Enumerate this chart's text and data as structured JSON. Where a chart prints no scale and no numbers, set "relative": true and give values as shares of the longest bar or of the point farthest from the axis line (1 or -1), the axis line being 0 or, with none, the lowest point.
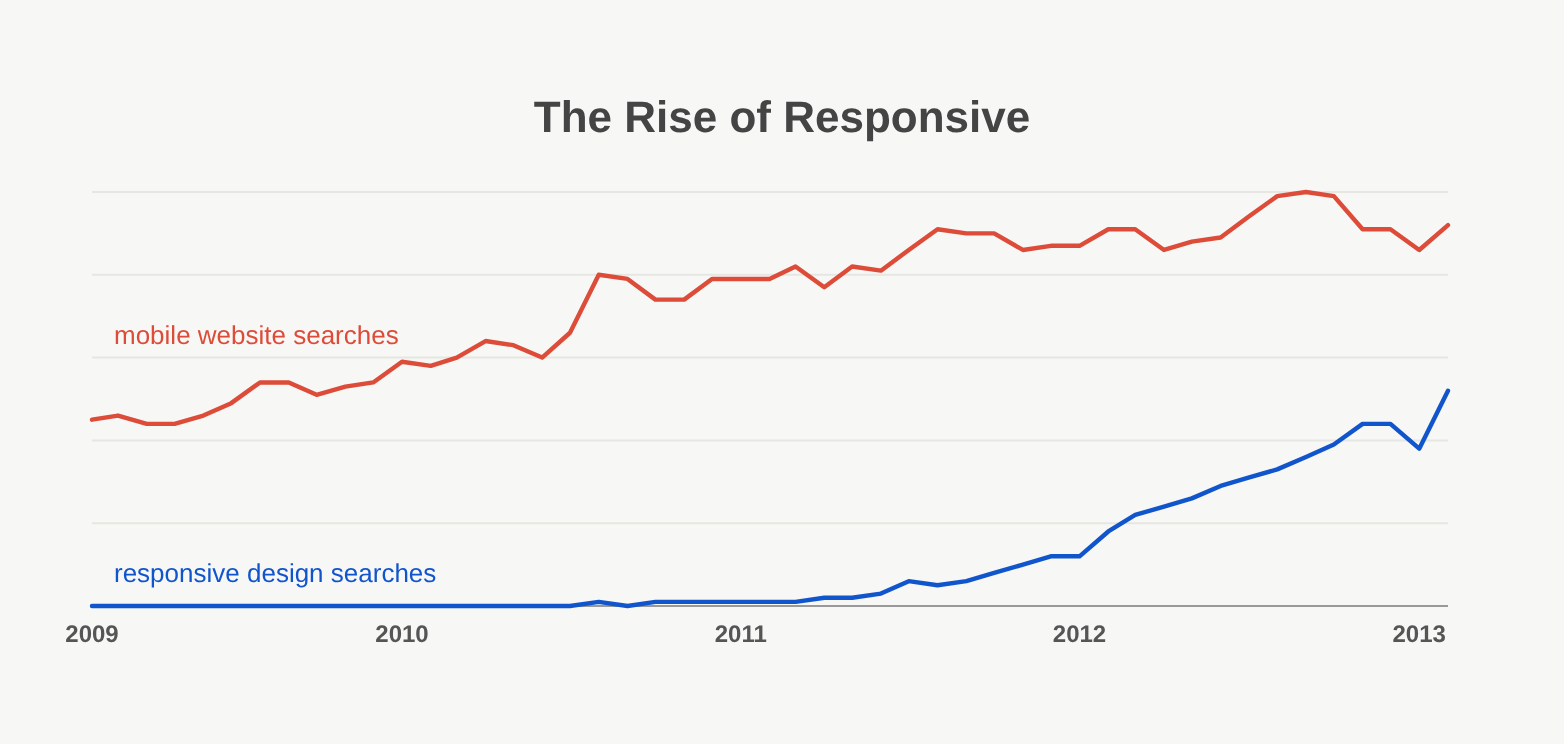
{
  "chart_data": {
    "type": "line",
    "title": "The Rise of Responsive",
    "relative": true,
    "grid": "y",
    "marker": "none",
    "line_style": "solid",
    "x": [
      "2009-02",
      "2009-03",
      "2009-04",
      "2009-05",
      "2009-06",
      "2009-07",
      "2009-08",
      "2009-09",
      "2009-10",
      "2009-11",
      "2009-12",
      "2010-01",
      "2010-02",
      "2010-03",
      "2010-04",
      "2010-05",
      "2010-06",
      "2010-07",
      "2010-08",
      "2010-09",
      "2010-10",
      "2010-11",
      "2010-12",
      "2011-01",
      "2011-02",
      "2011-03",
      "2011-04",
      "2011-05",
      "2011-06",
      "2011-07",
      "2011-08",
      "2011-09",
      "2011-10",
      "2011-11",
      "2011-12",
      "2012-01",
      "2012-02",
      "2012-03",
      "2012-04",
      "2012-05",
      "2012-06",
      "2012-07",
      "2012-08",
      "2012-09",
      "2012-10",
      "2012-11",
      "2012-12",
      "2013-01",
      "2013-02"
    ],
    "xlim": [
      "2009-02",
      "2013-02"
    ],
    "xticks": [
      {
        "value": "2009-02",
        "label": "2009"
      },
      {
        "value": "2010",
        "label": "2010"
      },
      {
        "value": "2011",
        "label": "2011"
      },
      {
        "value": "2012",
        "label": "2012"
      },
      {
        "value": "2013",
        "label": "2013"
      }
    ],
    "series": [
      {
        "name": "mobile website searches",
        "color": "#dd4b39",
        "values": [
          0.45,
          0.46,
          0.44,
          0.44,
          0.46,
          0.49,
          0.54,
          0.54,
          0.51,
          0.53,
          0.54,
          0.59,
          0.58,
          0.6,
          0.64,
          0.63,
          0.6,
          0.66,
          0.8,
          0.79,
          0.74,
          0.74,
          0.79,
          0.79,
          0.79,
          0.82,
          0.77,
          0.82,
          0.81,
          0.86,
          0.91,
          0.9,
          0.9,
          0.86,
          0.87,
          0.87,
          0.91,
          0.91,
          0.86,
          0.88,
          0.89,
          0.94,
          0.99,
          1.0,
          0.99,
          0.91,
          0.91,
          0.86,
          0.92
        ]
      },
      {
        "name": "responsive design searches",
        "color": "#1155cc",
        "values": [
          0,
          0,
          0,
          0,
          0,
          0,
          0,
          0,
          0,
          0,
          0,
          0,
          0,
          0,
          0,
          0,
          0,
          0,
          0.01,
          0,
          0.01,
          0.01,
          0.01,
          0.01,
          0.01,
          0.01,
          0.02,
          0.02,
          0.03,
          0.06,
          0.05,
          0.06,
          0.08,
          0.1,
          0.12,
          0.12,
          0.18,
          0.22,
          0.24,
          0.26,
          0.29,
          0.31,
          0.33,
          0.36,
          0.39,
          0.44,
          0.44,
          0.38,
          0.52
        ]
      }
    ]
  }
}
